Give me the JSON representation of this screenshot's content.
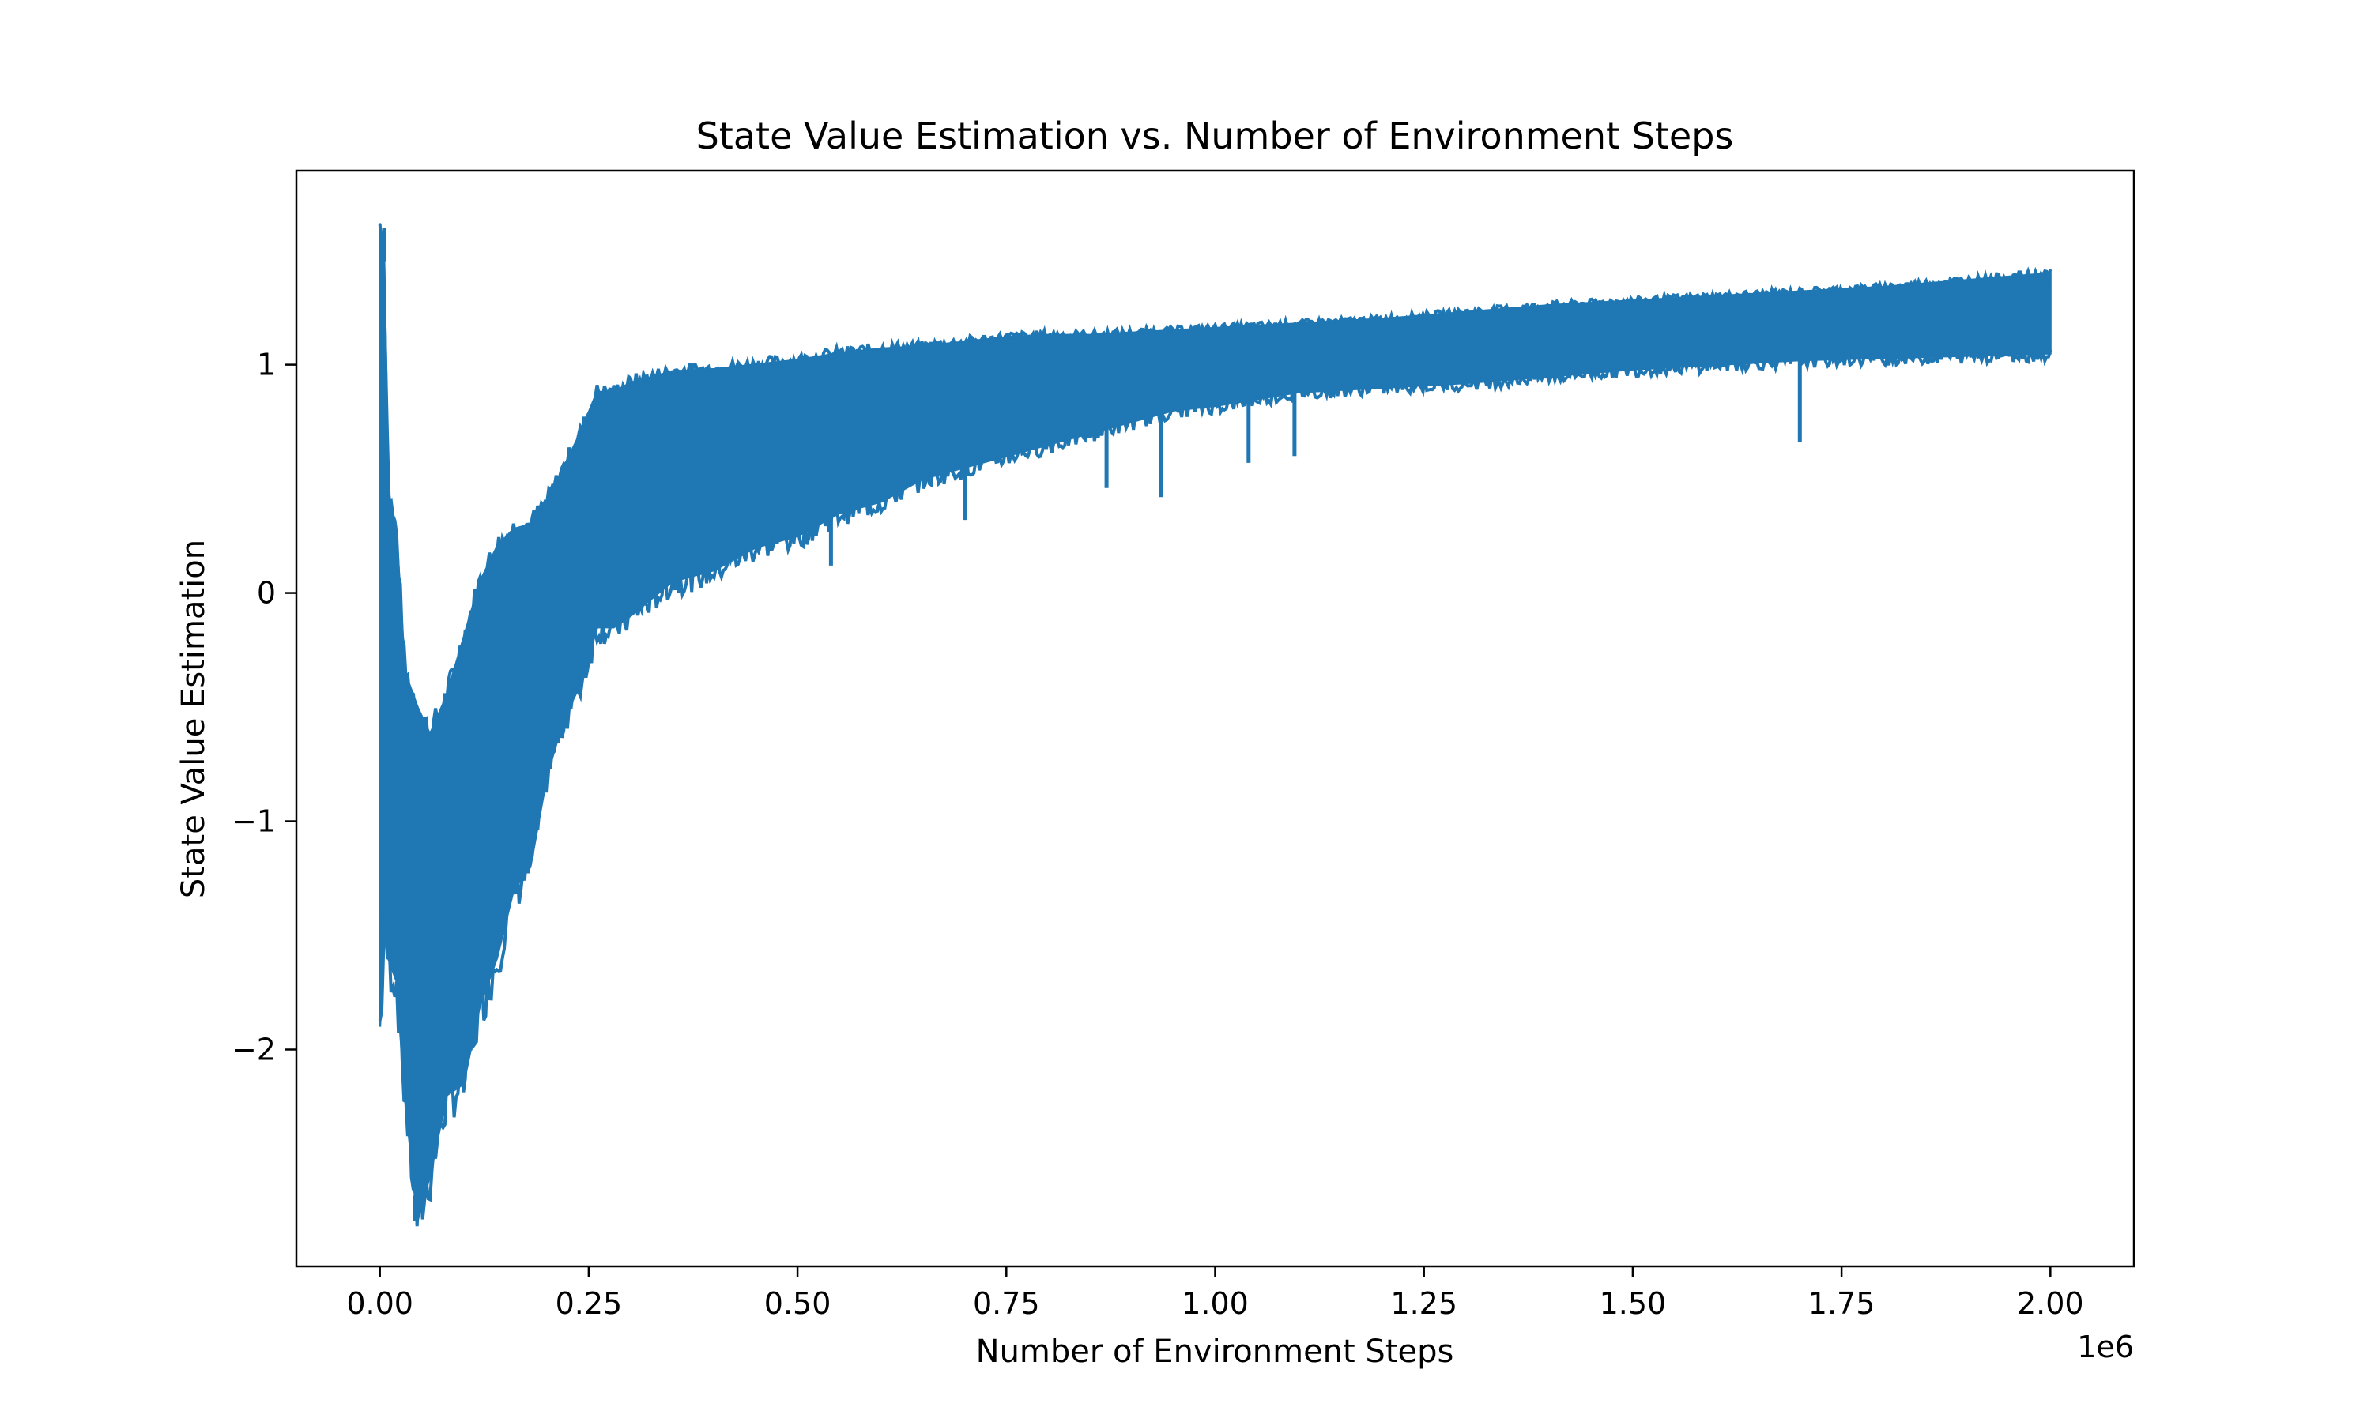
{
  "chart_data": {
    "type": "line",
    "title": "State Value Estimation vs. Number of Environment Steps",
    "xlabel": "Number of Environment Steps",
    "ylabel": "State Value Estimation",
    "x_offset_label": "1e6",
    "xlim": [
      -100000,
      2100000
    ],
    "ylim": [
      -2.95,
      1.85
    ],
    "x_ticks": [
      0,
      250000,
      500000,
      750000,
      1000000,
      1250000,
      1500000,
      1750000,
      2000000
    ],
    "x_tick_labels": [
      "0.00",
      "0.25",
      "0.50",
      "0.75",
      "1.00",
      "1.25",
      "1.50",
      "1.75",
      "2.00"
    ],
    "y_ticks": [
      -2,
      -1,
      0,
      1
    ],
    "y_tick_labels": [
      "−2",
      "−1",
      "0",
      "1"
    ],
    "grid": false,
    "legend": "none",
    "series": [
      {
        "color": "#1f77b4",
        "x": [
          0,
          5000,
          10000,
          20000,
          30000,
          45000,
          60000,
          80000,
          100000,
          120000,
          140000,
          160000,
          180000,
          200000,
          220000,
          240000,
          260000,
          280000,
          300000,
          350000,
          400000,
          450000,
          500000,
          550000,
          600000,
          650000,
          700000,
          750000,
          800000,
          850000,
          900000,
          950000,
          1000000,
          1050000,
          1100000,
          1200000,
          1300000,
          1400000,
          1500000,
          1600000,
          1700000,
          1800000,
          1900000,
          2000000
        ],
        "upper": [
          1.62,
          1.45,
          0.45,
          0.25,
          -0.35,
          -0.5,
          -0.62,
          -0.45,
          -0.2,
          0.05,
          0.2,
          0.28,
          0.3,
          0.4,
          0.55,
          0.7,
          0.88,
          0.88,
          0.92,
          0.97,
          0.98,
          1.0,
          1.02,
          1.05,
          1.07,
          1.08,
          1.1,
          1.12,
          1.13,
          1.13,
          1.14,
          1.15,
          1.16,
          1.17,
          1.18,
          1.2,
          1.23,
          1.26,
          1.28,
          1.3,
          1.32,
          1.34,
          1.37,
          1.4
        ],
        "lower": [
          -1.9,
          -1.5,
          -1.6,
          -1.7,
          -2.2,
          -2.75,
          -2.55,
          -2.2,
          -2.15,
          -1.8,
          -1.6,
          -1.3,
          -1.2,
          -0.8,
          -0.55,
          -0.4,
          -0.15,
          -0.15,
          -0.1,
          0.05,
          0.1,
          0.2,
          0.25,
          0.35,
          0.4,
          0.5,
          0.55,
          0.6,
          0.65,
          0.7,
          0.75,
          0.8,
          0.82,
          0.85,
          0.88,
          0.9,
          0.92,
          0.95,
          0.98,
          1.0,
          1.02,
          1.03,
          1.04,
          1.05
        ]
      }
    ],
    "annotations": [
      {
        "x": 5000,
        "y": 1.6
      },
      {
        "x": 42000,
        "y": -2.75
      },
      {
        "x": 540000,
        "y": 0.12
      },
      {
        "x": 700000,
        "y": 0.32
      },
      {
        "x": 870000,
        "y": 0.46
      },
      {
        "x": 935000,
        "y": 0.42
      },
      {
        "x": 1040000,
        "y": 0.57
      },
      {
        "x": 1095000,
        "y": 0.6
      },
      {
        "x": 1700000,
        "y": 0.66
      }
    ]
  }
}
